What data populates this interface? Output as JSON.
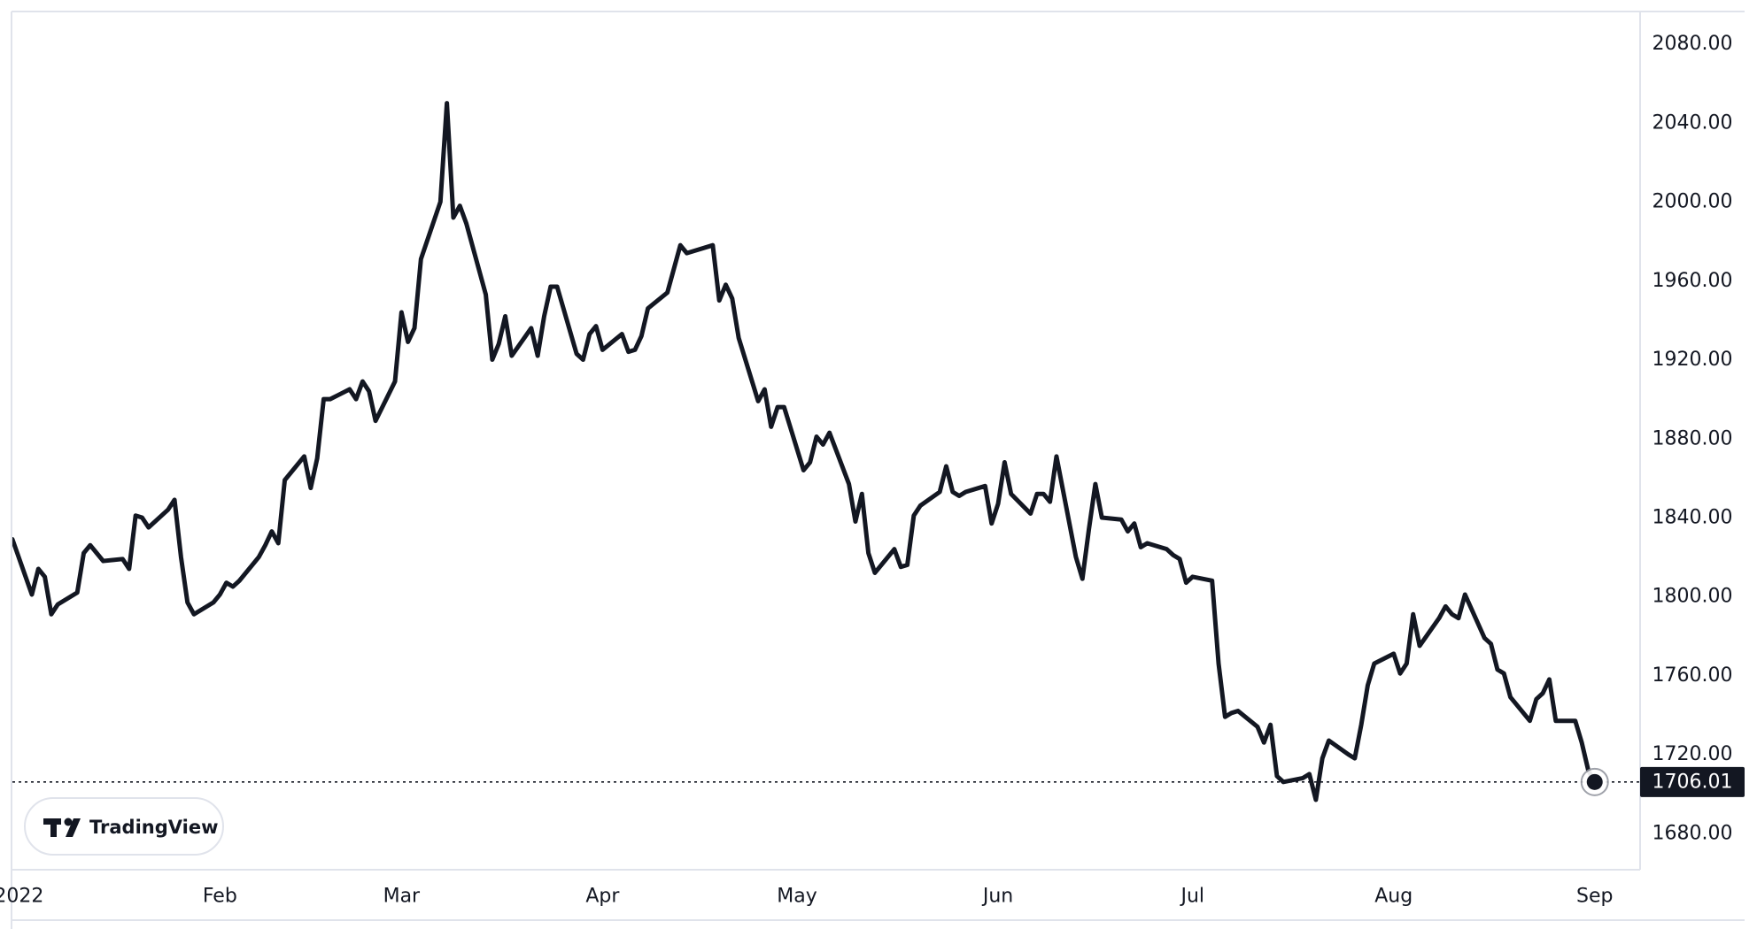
{
  "chart_data": {
    "type": "line",
    "title": "",
    "xlabel": "",
    "ylabel": "",
    "y_ticks": [
      "1680.00",
      "1720.00",
      "1760.00",
      "1800.00",
      "1840.00",
      "1880.00",
      "1920.00",
      "1960.00",
      "2000.00",
      "2040.00",
      "2080.00"
    ],
    "x_ticks": [
      "2022",
      "Feb",
      "Mar",
      "Apr",
      "May",
      "Jun",
      "Jul",
      "Aug",
      "Sep"
    ],
    "x_tick_dates": [
      "2022-01-01",
      "2022-02-01",
      "2022-03-01",
      "2022-04-01",
      "2022-05-01",
      "2022-06-01",
      "2022-07-01",
      "2022-08-01",
      "2022-09-01"
    ],
    "ylim": [
      1662,
      2096
    ],
    "xlim": [
      "2021-12-31",
      "2022-09-08"
    ],
    "grid": false,
    "last_price": 1706.01,
    "last_price_label": "1706.01",
    "series": [
      {
        "color": "#131722",
        "x": [
          "2021-12-31",
          "2022-01-03",
          "2022-01-04",
          "2022-01-05",
          "2022-01-06",
          "2022-01-07",
          "2022-01-10",
          "2022-01-11",
          "2022-01-12",
          "2022-01-13",
          "2022-01-14",
          "2022-01-17",
          "2022-01-18",
          "2022-01-19",
          "2022-01-20",
          "2022-01-21",
          "2022-01-24",
          "2022-01-25",
          "2022-01-26",
          "2022-01-27",
          "2022-01-28",
          "2022-01-31",
          "2022-02-01",
          "2022-02-02",
          "2022-02-03",
          "2022-02-04",
          "2022-02-07",
          "2022-02-08",
          "2022-02-09",
          "2022-02-10",
          "2022-02-11",
          "2022-02-14",
          "2022-02-15",
          "2022-02-16",
          "2022-02-17",
          "2022-02-18",
          "2022-02-21",
          "2022-02-22",
          "2022-02-23",
          "2022-02-24",
          "2022-02-25",
          "2022-02-28",
          "2022-03-01",
          "2022-03-02",
          "2022-03-03",
          "2022-03-04",
          "2022-03-07",
          "2022-03-08",
          "2022-03-09",
          "2022-03-10",
          "2022-03-11",
          "2022-03-14",
          "2022-03-15",
          "2022-03-16",
          "2022-03-17",
          "2022-03-18",
          "2022-03-21",
          "2022-03-22",
          "2022-03-23",
          "2022-03-24",
          "2022-03-25",
          "2022-03-28",
          "2022-03-29",
          "2022-03-30",
          "2022-03-31",
          "2022-04-01",
          "2022-04-04",
          "2022-04-05",
          "2022-04-06",
          "2022-04-07",
          "2022-04-08",
          "2022-04-11",
          "2022-04-12",
          "2022-04-13",
          "2022-04-14",
          "2022-04-15",
          "2022-04-18",
          "2022-04-19",
          "2022-04-20",
          "2022-04-21",
          "2022-04-22",
          "2022-04-25",
          "2022-04-26",
          "2022-04-27",
          "2022-04-28",
          "2022-04-29",
          "2022-05-02",
          "2022-05-03",
          "2022-05-04",
          "2022-05-05",
          "2022-05-06",
          "2022-05-09",
          "2022-05-10",
          "2022-05-11",
          "2022-05-12",
          "2022-05-13",
          "2022-05-16",
          "2022-05-17",
          "2022-05-18",
          "2022-05-19",
          "2022-05-20",
          "2022-05-23",
          "2022-05-24",
          "2022-05-25",
          "2022-05-26",
          "2022-05-27",
          "2022-05-30",
          "2022-05-31",
          "2022-06-01",
          "2022-06-02",
          "2022-06-03",
          "2022-06-06",
          "2022-06-07",
          "2022-06-08",
          "2022-06-09",
          "2022-06-10",
          "2022-06-13",
          "2022-06-14",
          "2022-06-15",
          "2022-06-16",
          "2022-06-17",
          "2022-06-20",
          "2022-06-21",
          "2022-06-22",
          "2022-06-23",
          "2022-06-24",
          "2022-06-27",
          "2022-06-28",
          "2022-06-29",
          "2022-06-30",
          "2022-07-01",
          "2022-07-04",
          "2022-07-05",
          "2022-07-06",
          "2022-07-07",
          "2022-07-08",
          "2022-07-11",
          "2022-07-12",
          "2022-07-13",
          "2022-07-14",
          "2022-07-15",
          "2022-07-18",
          "2022-07-19",
          "2022-07-20",
          "2022-07-21",
          "2022-07-22",
          "2022-07-25",
          "2022-07-26",
          "2022-07-27",
          "2022-07-28",
          "2022-07-29",
          "2022-08-01",
          "2022-08-02",
          "2022-08-03",
          "2022-08-04",
          "2022-08-05",
          "2022-08-08",
          "2022-08-09",
          "2022-08-10",
          "2022-08-11",
          "2022-08-12",
          "2022-08-15",
          "2022-08-16",
          "2022-08-17",
          "2022-08-18",
          "2022-08-19",
          "2022-08-22",
          "2022-08-23",
          "2022-08-24",
          "2022-08-25",
          "2022-08-26",
          "2022-08-29",
          "2022-08-30",
          "2022-08-31",
          "2022-09-01"
        ],
        "values": [
          1829,
          1801,
          1814,
          1810,
          1791,
          1796,
          1802,
          1822,
          1826,
          1822,
          1818,
          1819,
          1814,
          1841,
          1840,
          1835,
          1844,
          1849,
          1820,
          1797,
          1791,
          1797,
          1801,
          1807,
          1805,
          1808,
          1820,
          1826,
          1833,
          1827,
          1859,
          1871,
          1855,
          1870,
          1900,
          1900,
          1905,
          1900,
          1909,
          1904,
          1889,
          1909,
          1944,
          1929,
          1936,
          1971,
          2000,
          2050,
          1992,
          1998,
          1989,
          1953,
          1920,
          1928,
          1942,
          1922,
          1936,
          1922,
          1942,
          1957,
          1957,
          1923,
          1920,
          1933,
          1937,
          1925,
          1933,
          1924,
          1925,
          1932,
          1946,
          1954,
          1966,
          1978,
          1974,
          1975,
          1978,
          1950,
          1958,
          1951,
          1931,
          1899,
          1905,
          1886,
          1896,
          1896,
          1864,
          1868,
          1881,
          1877,
          1883,
          1857,
          1838,
          1852,
          1822,
          1812,
          1824,
          1815,
          1816,
          1841,
          1846,
          1853,
          1866,
          1853,
          1851,
          1853,
          1856,
          1837,
          1847,
          1868,
          1852,
          1842,
          1852,
          1852,
          1848,
          1871,
          1820,
          1809,
          1834,
          1857,
          1840,
          1839,
          1833,
          1837,
          1825,
          1827,
          1824,
          1821,
          1819,
          1807,
          1810,
          1808,
          1766,
          1739,
          1741,
          1742,
          1734,
          1726,
          1735,
          1709,
          1706,
          1708,
          1710,
          1697,
          1718,
          1727,
          1720,
          1718,
          1735,
          1755,
          1766,
          1771,
          1761,
          1766,
          1791,
          1775,
          1789,
          1795,
          1791,
          1789,
          1801,
          1779,
          1776,
          1763,
          1761,
          1749,
          1737,
          1748,
          1751,
          1758,
          1737,
          1737,
          1726,
          1712,
          1706
        ]
      }
    ]
  },
  "branding": {
    "logo_text": "TradingView"
  },
  "colors": {
    "line": "#131722",
    "price_label_bg": "#131722",
    "frame": "#e0e3eb"
  }
}
